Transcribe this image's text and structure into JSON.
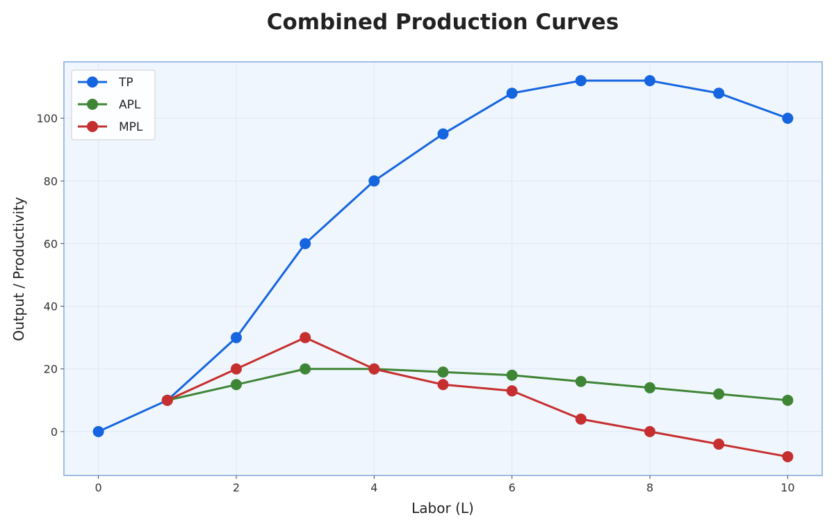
{
  "chart_data": {
    "type": "line",
    "title": "Combined Production Curves",
    "xlabel": "Labor (L)",
    "ylabel": "Output / Productivity",
    "x": [
      0,
      1,
      2,
      3,
      4,
      5,
      6,
      7,
      8,
      9,
      10
    ],
    "xlim": [
      -0.5,
      10.5
    ],
    "ylim": [
      -14,
      118
    ],
    "xticks": [
      0,
      2,
      4,
      6,
      8,
      10
    ],
    "yticks": [
      0,
      20,
      40,
      60,
      80,
      100
    ],
    "grid": true,
    "legend_position": "top-left",
    "background_color": "#f0f6fd",
    "series": [
      {
        "name": "TP",
        "color": "#1565e0",
        "x": [
          0,
          1,
          2,
          3,
          4,
          5,
          6,
          7,
          8,
          9,
          10
        ],
        "values": [
          0,
          10,
          30,
          60,
          80,
          95,
          108,
          112,
          112,
          108,
          100
        ]
      },
      {
        "name": "APL",
        "color": "#3f8536",
        "x": [
          1,
          2,
          3,
          4,
          5,
          6,
          7,
          8,
          9,
          10
        ],
        "values": [
          10,
          15,
          20,
          20,
          19,
          18,
          16,
          14,
          12,
          10
        ]
      },
      {
        "name": "MPL",
        "color": "#c62f2f",
        "x": [
          1,
          2,
          3,
          4,
          5,
          6,
          7,
          8,
          9,
          10
        ],
        "values": [
          10,
          20,
          30,
          20,
          15,
          13,
          4,
          0,
          -4,
          -8
        ]
      }
    ]
  }
}
